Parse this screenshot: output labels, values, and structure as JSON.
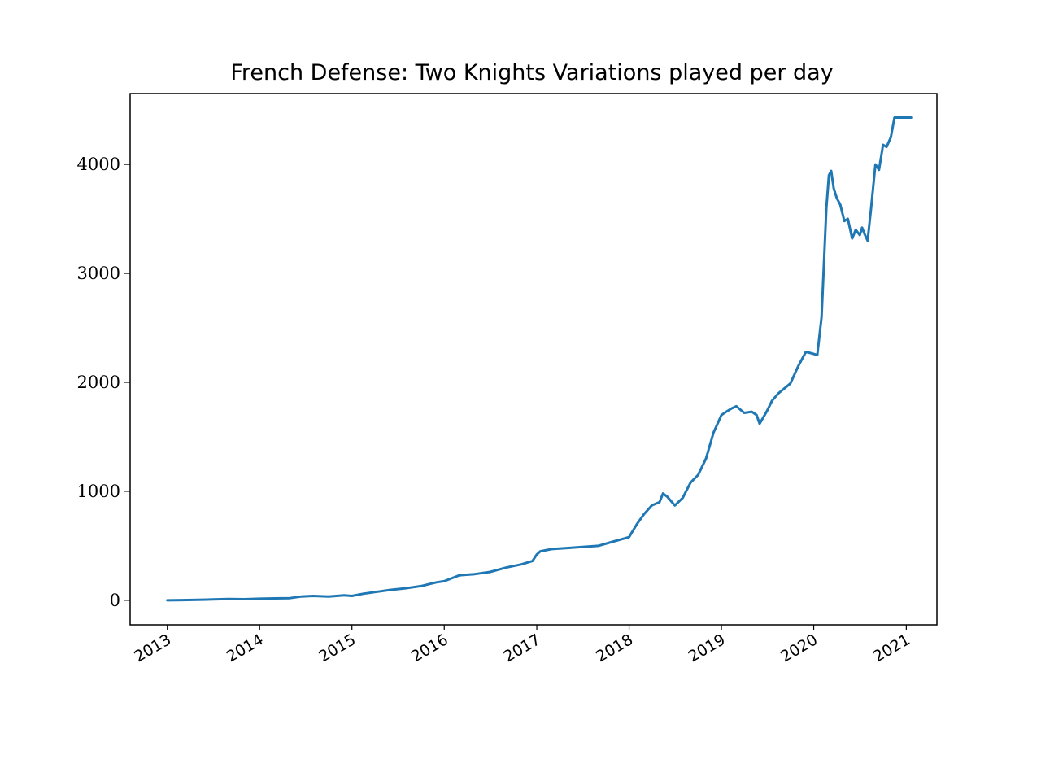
{
  "chart_data": {
    "type": "line",
    "title": "French Defense: Two Knights Variations played per day",
    "xlabel": "",
    "ylabel": "",
    "x_type": "date",
    "xlim": [
      "2012-08-07",
      "2021-05-02"
    ],
    "ylim": [
      -225,
      4650
    ],
    "grid": false,
    "legend": "none",
    "line_color": "#1f77b4",
    "xticks": [
      {
        "value": "2013-01-01",
        "label": "2013"
      },
      {
        "value": "2014-01-01",
        "label": "2014"
      },
      {
        "value": "2015-01-01",
        "label": "2015"
      },
      {
        "value": "2016-01-01",
        "label": "2016"
      },
      {
        "value": "2017-01-01",
        "label": "2017"
      },
      {
        "value": "2018-01-01",
        "label": "2018"
      },
      {
        "value": "2019-01-01",
        "label": "2019"
      },
      {
        "value": "2020-01-01",
        "label": "2020"
      },
      {
        "value": "2021-01-01",
        "label": "2021"
      }
    ],
    "yticks": [
      {
        "value": 0,
        "label": "0"
      },
      {
        "value": 1000,
        "label": "1000"
      },
      {
        "value": 2000,
        "label": "2000"
      },
      {
        "value": 3000,
        "label": "3000"
      },
      {
        "value": 4000,
        "label": "4000"
      }
    ],
    "series": [
      {
        "x": [
          "2013-01-01",
          "2013-03-01",
          "2013-05-01",
          "2013-07-01",
          "2013-09-01",
          "2013-11-01",
          "2014-01-01",
          "2014-03-01",
          "2014-05-01",
          "2014-06-15",
          "2014-08-01",
          "2014-10-01",
          "2014-12-01",
          "2015-01-01",
          "2015-02-15",
          "2015-04-01",
          "2015-06-01",
          "2015-08-01",
          "2015-10-01",
          "2015-12-01",
          "2016-01-01",
          "2016-03-01",
          "2016-05-01",
          "2016-07-01",
          "2016-09-01",
          "2016-11-01",
          "2016-12-15",
          "2017-01-01",
          "2017-01-15",
          "2017-03-01",
          "2017-05-01",
          "2017-07-01",
          "2017-09-01",
          "2017-11-01",
          "2018-01-01",
          "2018-02-01",
          "2018-03-01",
          "2018-04-01",
          "2018-05-01",
          "2018-05-15",
          "2018-06-01",
          "2018-07-01",
          "2018-08-01",
          "2018-09-01",
          "2018-10-01",
          "2018-11-01",
          "2018-12-01",
          "2019-01-01",
          "2019-01-20",
          "2019-02-10",
          "2019-03-01",
          "2019-04-01",
          "2019-05-01",
          "2019-05-20",
          "2019-06-01",
          "2019-07-01",
          "2019-07-20",
          "2019-08-15",
          "2019-10-01",
          "2019-11-01",
          "2019-12-01",
          "2020-01-01",
          "2020-01-15",
          "2020-02-01",
          "2020-02-20",
          "2020-03-01",
          "2020-03-10",
          "2020-03-20",
          "2020-04-01",
          "2020-04-15",
          "2020-05-01",
          "2020-05-15",
          "2020-06-01",
          "2020-06-15",
          "2020-07-01",
          "2020-07-10",
          "2020-07-20",
          "2020-08-01",
          "2020-08-15",
          "2020-09-01",
          "2020-09-15",
          "2020-10-01",
          "2020-10-15",
          "2020-11-01",
          "2020-11-15",
          "2020-12-01",
          "2020-12-20",
          "2021-01-01",
          "2021-01-20"
        ],
        "values": [
          0,
          2,
          5,
          8,
          12,
          10,
          15,
          18,
          20,
          35,
          40,
          35,
          45,
          40,
          60,
          75,
          95,
          110,
          130,
          165,
          175,
          230,
          240,
          260,
          300,
          330,
          360,
          420,
          450,
          470,
          480,
          490,
          500,
          540,
          580,
          700,
          790,
          870,
          900,
          980,
          950,
          870,
          940,
          1080,
          1150,
          1300,
          1540,
          1700,
          1730,
          1760,
          1780,
          1720,
          1730,
          1700,
          1620,
          1740,
          1830,
          1900,
          1990,
          2150,
          2280,
          2260,
          2250,
          2600,
          3600,
          3900,
          3940,
          3780,
          3690,
          3630,
          3480,
          3500,
          3320,
          3400,
          3350,
          3420,
          3360,
          3300,
          3600,
          4000,
          3950,
          4180,
          4160,
          4250,
          4430,
          4430,
          4430,
          4430,
          4430
        ]
      }
    ]
  }
}
